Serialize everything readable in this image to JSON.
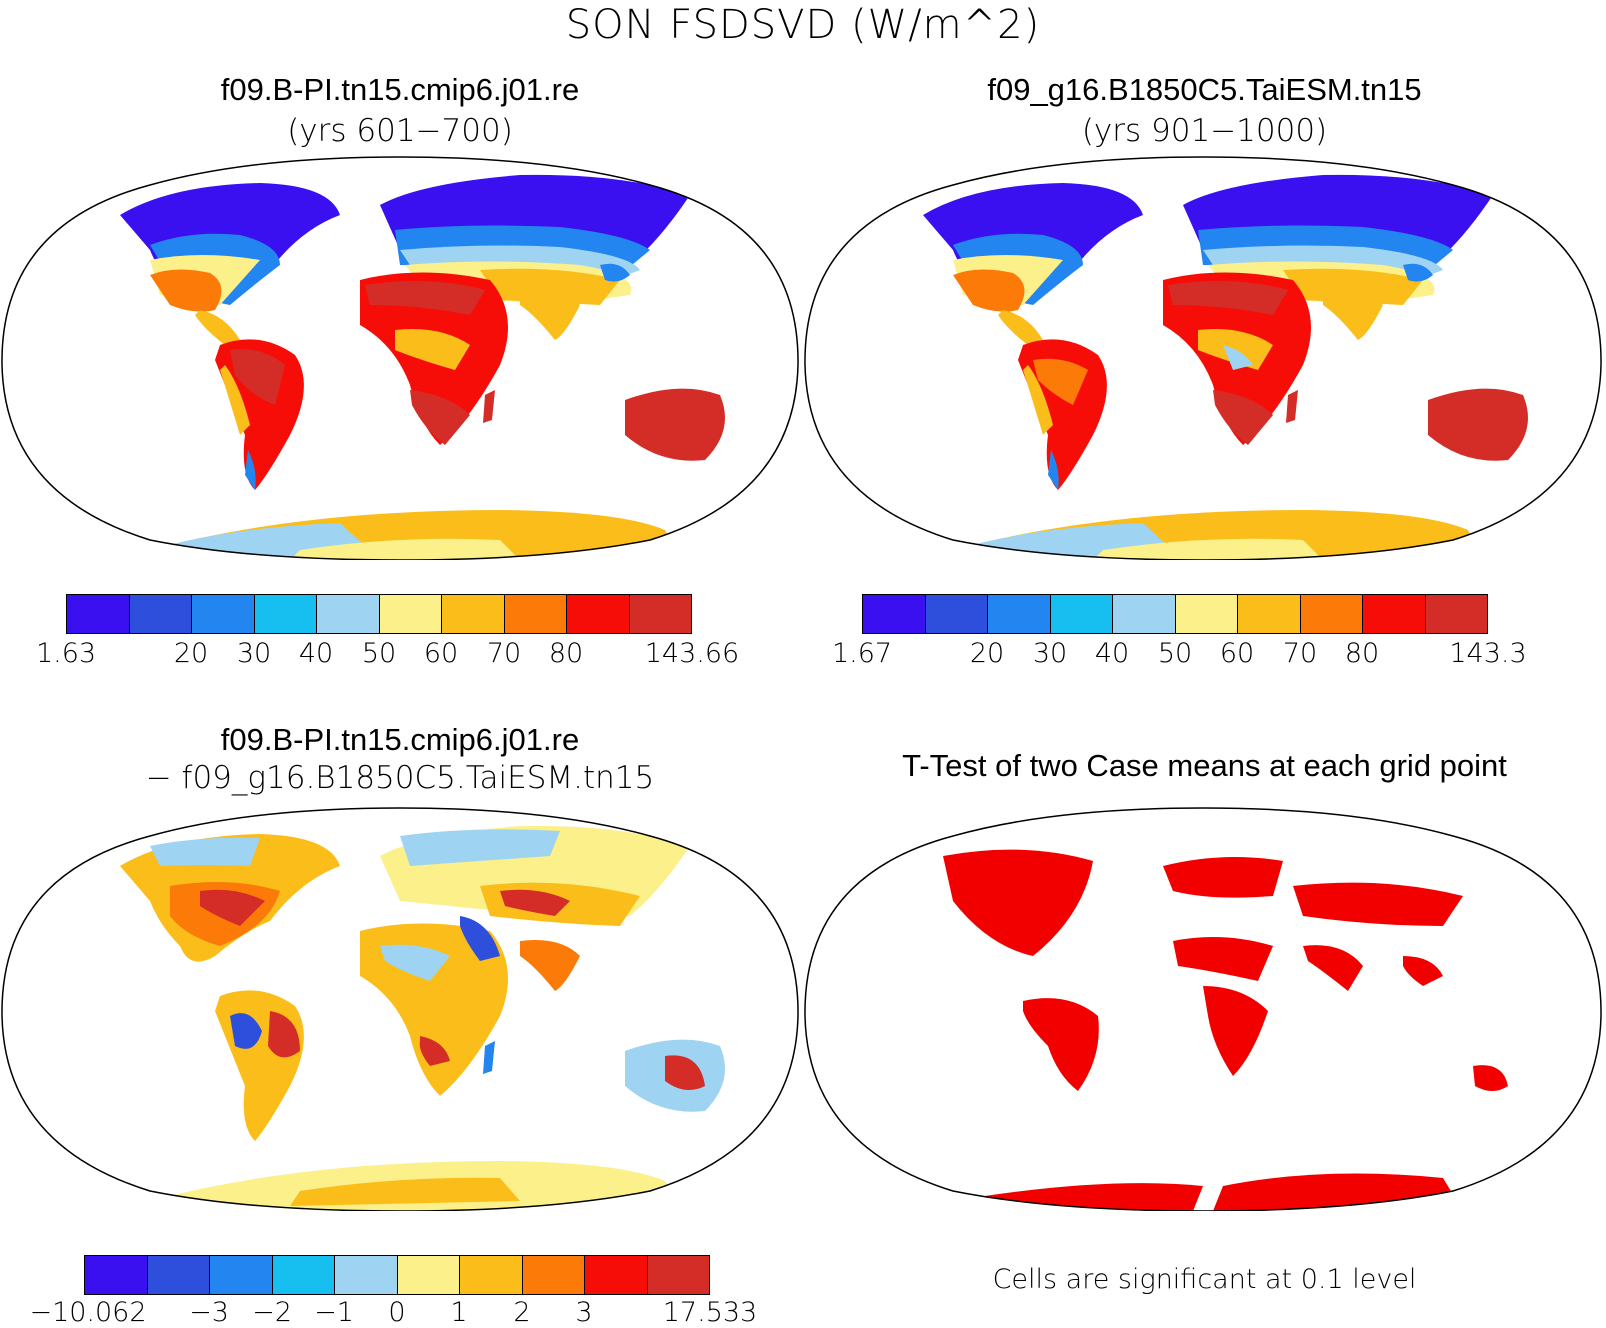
{
  "title": "SON FSDSVD (W/m^2)",
  "panels": [
    {
      "title": "f09.B-PI.tn15.cmip6.j01.re",
      "subtitle": "(yrs 601−700)"
    },
    {
      "title": "f09_g16.B1850C5.TaiESM.tn15",
      "subtitle": "(yrs 901−1000)"
    },
    {
      "title": "f09.B-PI.tn15.cmip6.j01.re",
      "subtitle": "− f09_g16.B1850C5.TaiESM.tn15"
    },
    {
      "title": "T-Test of two Case means at each grid point",
      "note": "Cells are significant at 0.1 level"
    }
  ],
  "colorbars": [
    {
      "colors": [
        "#3b10f0",
        "#2e4fdb",
        "#2385f0",
        "#17bff0",
        "#9fd3f2",
        "#fbf08a",
        "#fbbd1a",
        "#fb7a08",
        "#f70d08",
        "#d42d27"
      ],
      "labels": [
        "1.63",
        "",
        "20",
        "30",
        "40",
        "50",
        "60",
        "70",
        "80",
        "",
        "143.66"
      ]
    },
    {
      "colors": [
        "#3b10f0",
        "#2e4fdb",
        "#2385f0",
        "#17bff0",
        "#9fd3f2",
        "#fbf08a",
        "#fbbd1a",
        "#fb7a08",
        "#f70d08",
        "#d42d27"
      ],
      "labels": [
        "1.67",
        "",
        "20",
        "30",
        "40",
        "50",
        "60",
        "70",
        "80",
        "",
        "143.3"
      ]
    },
    {
      "colors": [
        "#3b10f0",
        "#2e4fdb",
        "#2385f0",
        "#17bff0",
        "#9fd3f2",
        "#fbf08a",
        "#fbbd1a",
        "#fb7a08",
        "#f70d08",
        "#d42d27"
      ],
      "labels": [
        "−10.062",
        "",
        "−3",
        "−2",
        "−1",
        "0",
        "1",
        "2",
        "3",
        "",
        "17.533"
      ]
    }
  ],
  "significance_color": "#f20000"
}
